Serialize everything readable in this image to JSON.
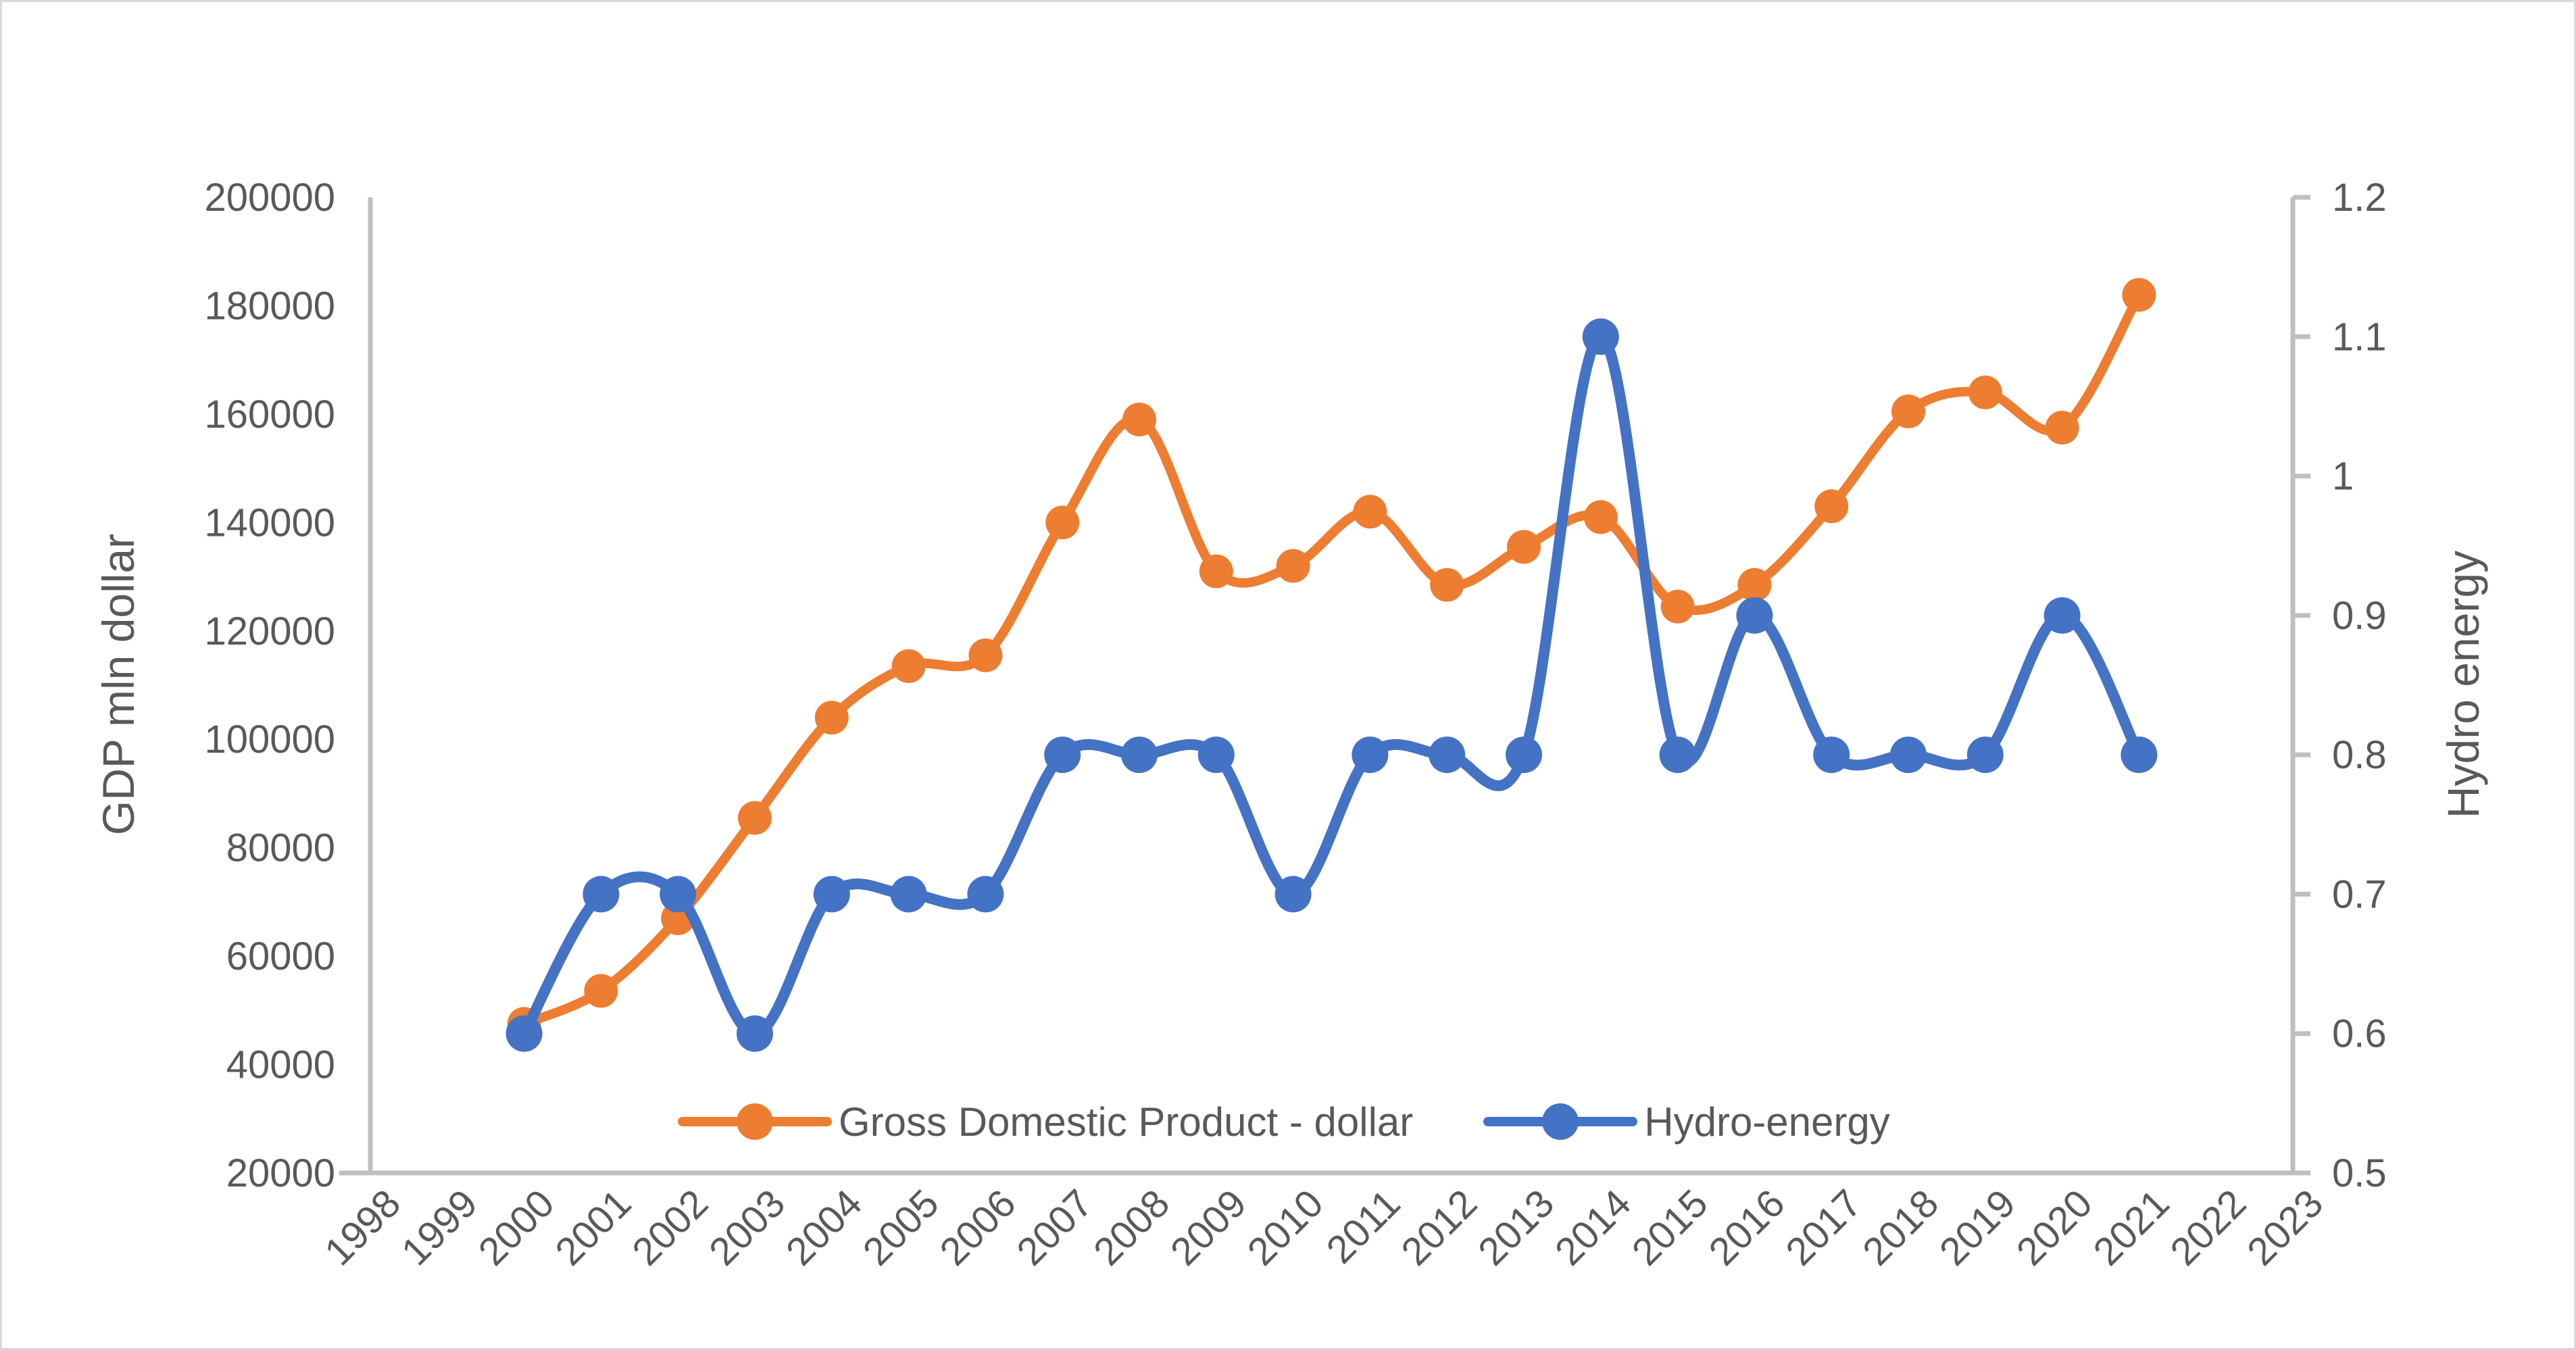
{
  "figure": {
    "background": "#ffffff",
    "border_color": "#d9d9d9",
    "text_color": "#595959",
    "axis_line_color": "#bfbfbf"
  },
  "chart_data": {
    "type": "line",
    "smoothed": true,
    "grid": false,
    "legend_position": "bottom-inside",
    "x": [
      2000,
      2001,
      2002,
      2003,
      2004,
      2005,
      2006,
      2007,
      2008,
      2009,
      2010,
      2011,
      2012,
      2013,
      2014,
      2015,
      2016,
      2017,
      2018,
      2019,
      2020,
      2021
    ],
    "series": [
      {
        "name": "Gross Domestic Product - dollar",
        "axis": "left",
        "color": "#ED7D31",
        "values": [
          47500,
          53600,
          67000,
          85500,
          104000,
          113500,
          115500,
          140000,
          159000,
          131000,
          132000,
          142000,
          128500,
          135500,
          141000,
          124500,
          128500,
          143000,
          160500,
          164000,
          157500,
          182000
        ]
      },
      {
        "name": "Hydro-energy",
        "axis": "right",
        "color": "#4472C4",
        "values": [
          0.6,
          0.7,
          0.7,
          0.6,
          0.7,
          0.7,
          0.7,
          0.8,
          0.8,
          0.8,
          0.7,
          0.8,
          0.8,
          0.8,
          1.1,
          0.8,
          0.9,
          0.8,
          0.8,
          0.8,
          0.9,
          0.8
        ]
      }
    ],
    "x_axis": {
      "range": [
        1998,
        2023
      ],
      "ticks": [
        1998,
        1999,
        2000,
        2001,
        2002,
        2003,
        2004,
        2005,
        2006,
        2007,
        2008,
        2009,
        2010,
        2011,
        2012,
        2013,
        2014,
        2015,
        2016,
        2017,
        2018,
        2019,
        2020,
        2021,
        2022,
        2023
      ]
    },
    "left_axis": {
      "title": "GDP mln dollar",
      "min": 20000,
      "max": 200000,
      "step": 20000,
      "tick_labels": [
        "20000",
        "40000",
        "60000",
        "80000",
        "100000",
        "120000",
        "140000",
        "160000",
        "180000",
        "200000"
      ]
    },
    "right_axis": {
      "title": "Hydro energy",
      "min": 0.5,
      "max": 1.2,
      "step": 0.1,
      "tick_labels": [
        "0.5",
        "0.6",
        "0.7",
        "0.8",
        "0.9",
        "1",
        "1.1",
        "1.2"
      ]
    }
  }
}
